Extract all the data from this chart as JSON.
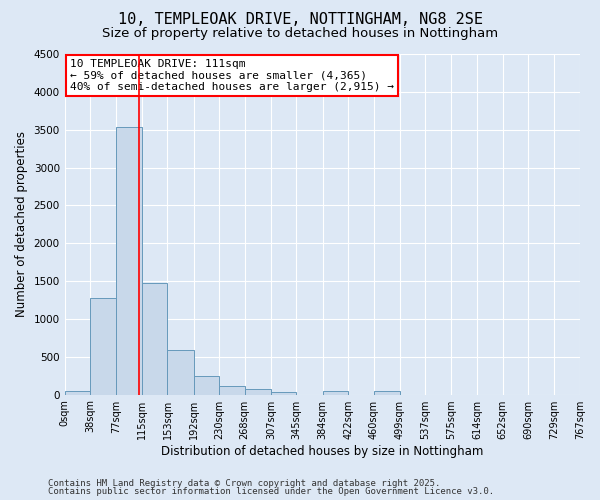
{
  "title1": "10, TEMPLEOAK DRIVE, NOTTINGHAM, NG8 2SE",
  "title2": "Size of property relative to detached houses in Nottingham",
  "xlabel": "Distribution of detached houses by size in Nottingham",
  "ylabel": "Number of detached properties",
  "bin_edges": [
    0,
    38,
    77,
    115,
    153,
    192,
    230,
    268,
    307,
    345,
    384,
    422,
    460,
    499,
    537,
    575,
    614,
    652,
    690,
    729,
    767
  ],
  "bar_heights": [
    50,
    1280,
    3540,
    1480,
    590,
    250,
    115,
    70,
    40,
    0,
    50,
    0,
    50,
    0,
    0,
    0,
    0,
    0,
    0,
    0
  ],
  "bar_color": "#c8d8ea",
  "bar_edgecolor": "#6699bb",
  "bar_linewidth": 0.7,
  "red_line_x": 111,
  "ylim": [
    0,
    4500
  ],
  "yticks": [
    0,
    500,
    1000,
    1500,
    2000,
    2500,
    3000,
    3500,
    4000,
    4500
  ],
  "bg_color": "#dde8f5",
  "grid_color": "#ffffff",
  "annotation_text": "10 TEMPLEOAK DRIVE: 111sqm\n← 59% of detached houses are smaller (4,365)\n40% of semi-detached houses are larger (2,915) →",
  "title1_fontsize": 11,
  "title2_fontsize": 9.5,
  "axis_label_fontsize": 8.5,
  "tick_fontsize": 7.5,
  "annot_fontsize": 8,
  "footer_text1": "Contains HM Land Registry data © Crown copyright and database right 2025.",
  "footer_text2": "Contains public sector information licensed under the Open Government Licence v3.0."
}
